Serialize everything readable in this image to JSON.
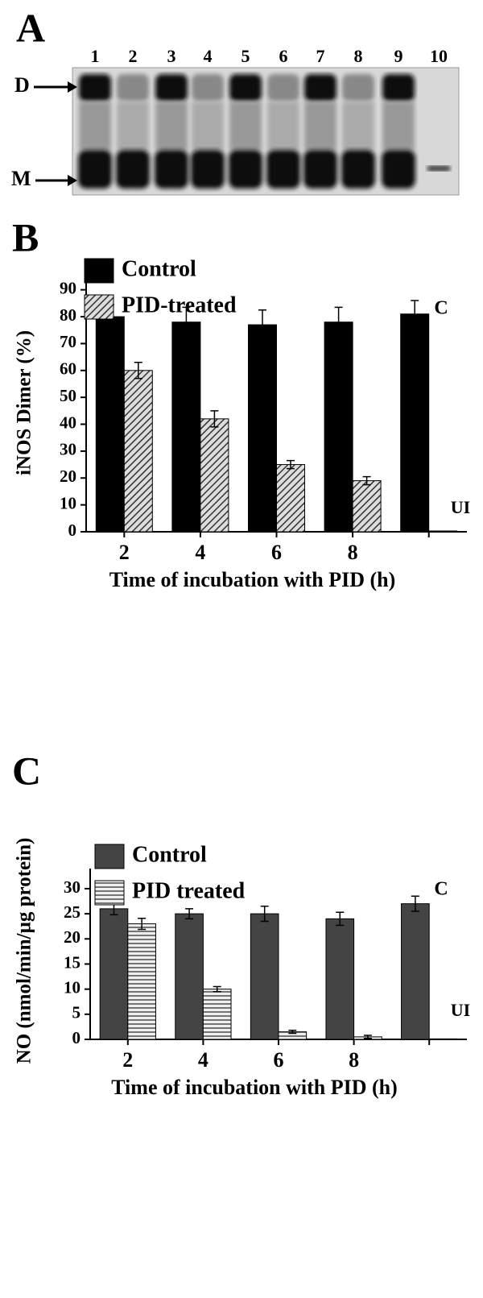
{
  "gel": {
    "label": "A",
    "lanes": [
      "1",
      "2",
      "3",
      "4",
      "5",
      "6",
      "7",
      "8",
      "9",
      "10"
    ],
    "markers": [
      "D",
      "M"
    ]
  },
  "chart_data": [
    {
      "type": "bar",
      "panel_label": "B",
      "ylabel": "iNOS Dimer (%)",
      "xlabel": "Time of incubation with PID (h)",
      "categories": [
        "2",
        "4",
        "6",
        "8",
        null
      ],
      "series": [
        {
          "name": "Control",
          "color": "#000000",
          "pattern": "solid",
          "values": [
            80,
            78,
            77,
            78,
            81
          ],
          "errors": [
            4.5,
            5.5,
            5.5,
            5.5,
            5
          ]
        },
        {
          "name": "PID-treated",
          "color": "#555555",
          "pattern": "diagonal",
          "values": [
            60,
            42,
            25,
            19,
            0.3
          ],
          "errors": [
            3,
            3,
            1.5,
            1.5,
            null
          ]
        }
      ],
      "ylim": [
        0,
        95
      ],
      "yticks": [
        0,
        10,
        20,
        30,
        40,
        50,
        60,
        70,
        80,
        90
      ],
      "grid": false,
      "legend": "upper left",
      "annotations": [
        "C",
        "UI"
      ]
    },
    {
      "type": "bar",
      "panel_label": "C",
      "ylabel": "NO (nmol/min/µg protein)",
      "xlabel": "Time of incubation with PID (h)",
      "categories": [
        "2",
        "4",
        "6",
        "8",
        null
      ],
      "series": [
        {
          "name": "Control",
          "color": "#444444",
          "pattern": "solid",
          "values": [
            26,
            25,
            25,
            24,
            27
          ],
          "errors": [
            1.2,
            1,
            1.5,
            1.3,
            1.5
          ]
        },
        {
          "name": "PID treated",
          "color": "#666666",
          "pattern": "horizontal",
          "values": [
            23,
            10,
            1.5,
            0.5,
            0.1
          ],
          "errors": [
            1.1,
            0.5,
            0.3,
            0.3,
            null
          ]
        }
      ],
      "ylim": [
        0,
        34
      ],
      "yticks": [
        0,
        5,
        10,
        15,
        20,
        25,
        30
      ],
      "grid": false,
      "legend": "upper left",
      "annotations": [
        "C",
        "UI"
      ]
    }
  ]
}
